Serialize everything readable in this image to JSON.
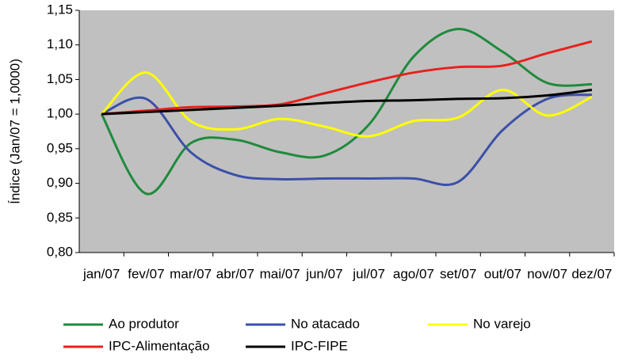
{
  "chart_data": {
    "type": "line",
    "y_label": "Índice (Jan/07 = 1,0000)",
    "categories": [
      "jan/07",
      "fev/07",
      "mar/07",
      "abr/07",
      "mai/07",
      "jun/07",
      "jul/07",
      "ago/07",
      "set/07",
      "out/07",
      "nov/07",
      "dez/07"
    ],
    "series": [
      {
        "name": "Ao produtor",
        "color": "#1f8a3c",
        "values": [
          1.0,
          0.885,
          0.958,
          0.963,
          0.945,
          0.94,
          0.985,
          1.083,
          1.123,
          1.09,
          1.045,
          1.043
        ]
      },
      {
        "name": "No atacado",
        "color": "#3c50a8",
        "values": [
          1.0,
          1.022,
          0.945,
          0.912,
          0.906,
          0.907,
          0.907,
          0.907,
          0.902,
          0.977,
          1.022,
          1.028
        ]
      },
      {
        "name": "No varejo",
        "color": "#ffff00",
        "values": [
          1.0,
          1.06,
          0.99,
          0.978,
          0.993,
          0.982,
          0.968,
          0.99,
          0.995,
          1.035,
          0.998,
          1.025
        ]
      },
      {
        "name": "IPC-Alimentação",
        "color": "#e8201c",
        "values": [
          1.0,
          1.005,
          1.01,
          1.011,
          1.014,
          1.03,
          1.046,
          1.06,
          1.068,
          1.07,
          1.088,
          1.105
        ]
      },
      {
        "name": "IPC-FIPE",
        "color": "#000000",
        "values": [
          1.0,
          1.003,
          1.006,
          1.009,
          1.012,
          1.016,
          1.019,
          1.02,
          1.022,
          1.023,
          1.027,
          1.035
        ]
      }
    ],
    "ylim": [
      0.8,
      1.15
    ],
    "yticks": [
      {
        "value": 0.8,
        "label": "0,80"
      },
      {
        "value": 0.85,
        "label": "0,85"
      },
      {
        "value": 0.9,
        "label": "0,90"
      },
      {
        "value": 0.95,
        "label": "0,95"
      },
      {
        "value": 1.0,
        "label": "1,00"
      },
      {
        "value": 1.05,
        "label": "1,05"
      },
      {
        "value": 1.1,
        "label": "1,10"
      },
      {
        "value": 1.15,
        "label": "1,15"
      }
    ],
    "background": "#c0c0c0",
    "grid": false,
    "legend": "bottom"
  }
}
